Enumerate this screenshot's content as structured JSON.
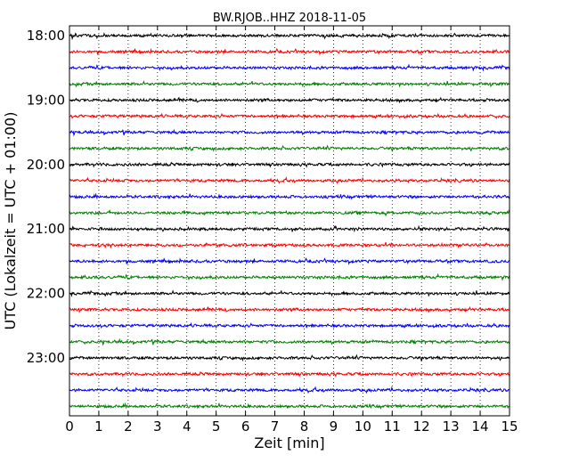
{
  "chart_data": {
    "type": "line",
    "title": "BW.RJOB..HHZ 2018-11-05",
    "xlabel": "Zeit  [min]",
    "ylabel": "UTC (Lokalzeit = UTC + 01:00)",
    "xlim": [
      0,
      15
    ],
    "x_ticks": [
      0,
      1,
      2,
      3,
      4,
      5,
      6,
      7,
      8,
      9,
      10,
      11,
      12,
      13,
      14,
      15
    ],
    "y_ticks": [
      "18:00",
      "19:00",
      "20:00",
      "21:00",
      "22:00",
      "23:00"
    ],
    "grid": "vertical dotted",
    "trace_colors": [
      "#000000",
      "#ff0000",
      "#0000ff",
      "#007f00"
    ],
    "trace_interval_minutes": 15,
    "series": [
      {
        "start": "18:00",
        "color": "#000000"
      },
      {
        "start": "18:15",
        "color": "#ff0000"
      },
      {
        "start": "18:30",
        "color": "#0000ff"
      },
      {
        "start": "18:45",
        "color": "#007f00"
      },
      {
        "start": "19:00",
        "color": "#000000"
      },
      {
        "start": "19:15",
        "color": "#ff0000"
      },
      {
        "start": "19:30",
        "color": "#0000ff"
      },
      {
        "start": "19:45",
        "color": "#007f00"
      },
      {
        "start": "20:00",
        "color": "#000000"
      },
      {
        "start": "20:15",
        "color": "#ff0000"
      },
      {
        "start": "20:30",
        "color": "#0000ff"
      },
      {
        "start": "20:45",
        "color": "#007f00"
      },
      {
        "start": "21:00",
        "color": "#000000"
      },
      {
        "start": "21:15",
        "color": "#ff0000"
      },
      {
        "start": "21:30",
        "color": "#0000ff"
      },
      {
        "start": "21:45",
        "color": "#007f00"
      },
      {
        "start": "22:00",
        "color": "#000000"
      },
      {
        "start": "22:15",
        "color": "#ff0000"
      },
      {
        "start": "22:30",
        "color": "#0000ff"
      },
      {
        "start": "22:45",
        "color": "#007f00"
      },
      {
        "start": "23:00",
        "color": "#000000"
      },
      {
        "start": "23:15",
        "color": "#ff0000"
      },
      {
        "start": "23:30",
        "color": "#0000ff"
      },
      {
        "start": "23:45",
        "color": "#007f00"
      }
    ]
  }
}
